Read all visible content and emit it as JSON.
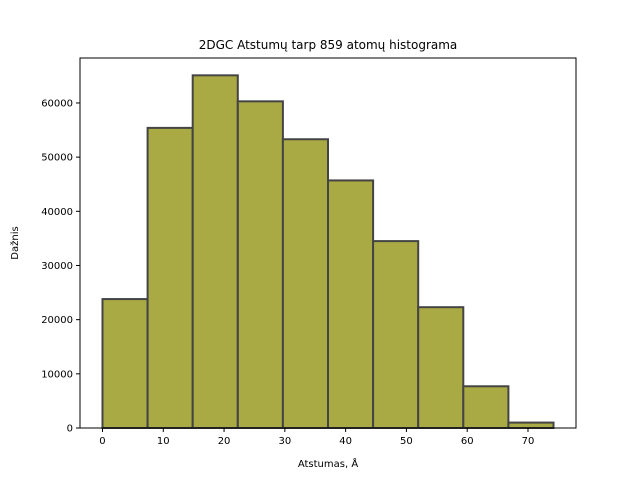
{
  "chart_data": {
    "type": "bar",
    "title": "2DGC Atstumų tarp 859 atomų histograma",
    "xlabel": "Atstumas, Å",
    "ylabel": "Dažnis",
    "bin_edges": [
      0,
      7.42,
      14.84,
      22.26,
      29.68,
      37.1,
      44.52,
      51.94,
      59.36,
      66.78,
      74.2
    ],
    "values": [
      23800,
      55400,
      65100,
      60300,
      53300,
      45700,
      34500,
      22300,
      7700,
      1000
    ],
    "xlim": [
      -3.7,
      77.9
    ],
    "ylim": [
      0,
      68300
    ],
    "xticks": [
      0,
      10,
      20,
      30,
      40,
      50,
      60,
      70
    ],
    "yticks": [
      0,
      10000,
      20000,
      30000,
      40000,
      50000,
      60000
    ],
    "bar_color": "#aaaa44",
    "edge_color": "#444444",
    "grid": false
  }
}
